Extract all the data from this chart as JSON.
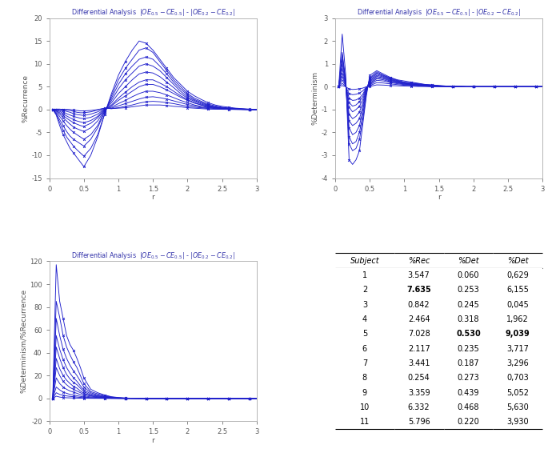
{
  "line_color": "#2020CC",
  "table_data": {
    "subjects": [
      1,
      2,
      3,
      4,
      5,
      6,
      7,
      8,
      9,
      10,
      11
    ],
    "rec": [
      3.547,
      7.635,
      0.842,
      2.464,
      7.028,
      2.117,
      3.441,
      0.254,
      3.359,
      6.332,
      5.796
    ],
    "det": [
      0.06,
      0.253,
      0.245,
      0.318,
      0.53,
      0.235,
      0.187,
      0.273,
      0.439,
      0.468,
      0.22
    ],
    "ratio": [
      0.629,
      6.155,
      0.045,
      1.962,
      9.039,
      3.717,
      3.296,
      0.703,
      5.052,
      5.63,
      3.93
    ],
    "bold_rec_rows": [
      2
    ],
    "bold_det_rows": [
      5
    ],
    "bold_ratio_rows": [
      5
    ]
  },
  "r_values": [
    0.05,
    0.1,
    0.15,
    0.2,
    0.25,
    0.3,
    0.35,
    0.4,
    0.45,
    0.5,
    0.6,
    0.7,
    0.8,
    0.9,
    1.0,
    1.1,
    1.2,
    1.3,
    1.4,
    1.5,
    1.6,
    1.7,
    1.8,
    1.9,
    2.0,
    2.1,
    2.2,
    2.3,
    2.4,
    2.5,
    2.6,
    2.7,
    2.8,
    2.9,
    3.0
  ],
  "rec_curves": [
    [
      0,
      -1.2,
      -3.5,
      -5.5,
      -7.0,
      -8.5,
      -9.5,
      -10.5,
      -11.5,
      -12.5,
      -10.0,
      -6.0,
      -1.0,
      3.5,
      7.5,
      10.5,
      13.0,
      15.0,
      14.5,
      13.0,
      11.0,
      9.0,
      7.0,
      5.5,
      4.0,
      3.0,
      2.2,
      1.5,
      1.0,
      0.7,
      0.5,
      0.3,
      0.2,
      0.1,
      0.0
    ],
    [
      0,
      -1.0,
      -2.8,
      -4.5,
      -6.0,
      -7.0,
      -8.0,
      -8.8,
      -9.5,
      -10.2,
      -8.5,
      -5.5,
      -1.0,
      3.0,
      6.5,
      9.0,
      11.0,
      13.0,
      13.5,
      12.5,
      10.5,
      8.5,
      6.5,
      5.0,
      3.5,
      2.5,
      1.8,
      1.2,
      0.8,
      0.5,
      0.3,
      0.2,
      0.1,
      0.05,
      0.0
    ],
    [
      0,
      -0.8,
      -2.2,
      -3.5,
      -4.8,
      -5.8,
      -6.5,
      -7.0,
      -7.5,
      -8.0,
      -6.5,
      -4.0,
      -0.5,
      2.5,
      5.5,
      7.8,
      9.5,
      11.0,
      11.5,
      11.0,
      9.5,
      7.8,
      6.0,
      4.5,
      3.2,
      2.2,
      1.6,
      1.0,
      0.6,
      0.4,
      0.3,
      0.2,
      0.1,
      0.05,
      0.0
    ],
    [
      0,
      -0.5,
      -1.5,
      -2.5,
      -3.5,
      -4.3,
      -5.0,
      -5.5,
      -6.0,
      -6.5,
      -5.5,
      -3.5,
      -0.3,
      2.0,
      4.5,
      6.5,
      8.0,
      9.5,
      10.0,
      9.5,
      8.5,
      7.0,
      5.5,
      4.0,
      2.8,
      2.0,
      1.4,
      0.9,
      0.6,
      0.4,
      0.3,
      0.2,
      0.1,
      0.05,
      0.0
    ],
    [
      0,
      -0.3,
      -1.0,
      -1.8,
      -2.5,
      -3.2,
      -3.8,
      -4.2,
      -4.5,
      -4.8,
      -4.0,
      -2.5,
      -0.2,
      1.5,
      3.5,
      5.0,
      6.5,
      7.8,
      8.2,
      8.0,
      7.2,
      6.0,
      4.8,
      3.5,
      2.5,
      1.8,
      1.2,
      0.8,
      0.5,
      0.3,
      0.2,
      0.1,
      0.05,
      0.02,
      0.0
    ],
    [
      0,
      -0.2,
      -0.7,
      -1.3,
      -1.9,
      -2.4,
      -2.9,
      -3.2,
      -3.5,
      -3.7,
      -3.0,
      -1.8,
      -0.1,
      1.0,
      2.5,
      3.8,
      5.0,
      6.0,
      6.5,
      6.5,
      5.8,
      5.0,
      4.0,
      3.0,
      2.2,
      1.5,
      1.0,
      0.7,
      0.4,
      0.3,
      0.2,
      0.1,
      0.05,
      0.02,
      0.0
    ],
    [
      0,
      -0.1,
      -0.4,
      -0.9,
      -1.4,
      -1.8,
      -2.2,
      -2.5,
      -2.7,
      -2.9,
      -2.4,
      -1.5,
      0.0,
      0.8,
      2.0,
      3.0,
      4.0,
      5.0,
      5.5,
      5.5,
      5.0,
      4.3,
      3.5,
      2.7,
      2.0,
      1.4,
      1.0,
      0.6,
      0.4,
      0.2,
      0.15,
      0.1,
      0.05,
      0.02,
      0.0
    ],
    [
      0,
      0.0,
      -0.2,
      -0.5,
      -0.9,
      -1.2,
      -1.5,
      -1.7,
      -1.9,
      -2.0,
      -1.7,
      -1.0,
      0.1,
      0.5,
      1.3,
      2.0,
      2.8,
      3.5,
      4.0,
      4.0,
      3.7,
      3.2,
      2.6,
      2.0,
      1.5,
      1.0,
      0.7,
      0.5,
      0.3,
      0.2,
      0.1,
      0.07,
      0.04,
      0.02,
      0.0
    ],
    [
      0,
      0.1,
      0.0,
      -0.2,
      -0.4,
      -0.6,
      -0.9,
      -1.1,
      -1.2,
      -1.3,
      -1.0,
      -0.5,
      0.2,
      0.3,
      0.8,
      1.3,
      1.8,
      2.3,
      2.7,
      2.8,
      2.6,
      2.3,
      1.9,
      1.5,
      1.1,
      0.8,
      0.5,
      0.4,
      0.2,
      0.1,
      0.08,
      0.05,
      0.03,
      0.01,
      0.0
    ],
    [
      0,
      0.1,
      0.1,
      0.0,
      -0.1,
      -0.2,
      -0.4,
      -0.6,
      -0.7,
      -0.7,
      -0.5,
      -0.1,
      0.3,
      0.2,
      0.4,
      0.7,
      1.0,
      1.4,
      1.7,
      1.8,
      1.7,
      1.5,
      1.3,
      1.0,
      0.7,
      0.5,
      0.4,
      0.2,
      0.15,
      0.1,
      0.07,
      0.04,
      0.02,
      0.01,
      0.0
    ],
    [
      0,
      0.05,
      0.05,
      0.05,
      0.02,
      0.0,
      -0.1,
      -0.2,
      -0.3,
      -0.3,
      -0.2,
      0.0,
      0.3,
      0.2,
      0.3,
      0.4,
      0.6,
      0.8,
      1.0,
      1.0,
      1.0,
      0.9,
      0.7,
      0.6,
      0.4,
      0.3,
      0.2,
      0.1,
      0.08,
      0.05,
      0.03,
      0.02,
      0.01,
      0.0,
      0.0
    ]
  ],
  "det_curves": [
    [
      0,
      2.3,
      0.55,
      -3.2,
      -3.4,
      -3.2,
      -2.8,
      -1.6,
      -0.4,
      0.5,
      0.7,
      0.55,
      0.4,
      0.3,
      0.25,
      0.2,
      0.15,
      0.1,
      0.08,
      0.05,
      0.03,
      0.02,
      0.01,
      0.0,
      0.0,
      0.0,
      0.0,
      0.0,
      0.0,
      0.0,
      0.0,
      0.0,
      0.0,
      0.0,
      0.0
    ],
    [
      0,
      1.5,
      0.3,
      -2.5,
      -2.8,
      -2.7,
      -2.3,
      -1.4,
      -0.3,
      0.4,
      0.65,
      0.5,
      0.38,
      0.28,
      0.2,
      0.17,
      0.13,
      0.09,
      0.07,
      0.04,
      0.03,
      0.02,
      0.01,
      0.0,
      0.0,
      0.0,
      0.0,
      0.0,
      0.0,
      0.0,
      0.0,
      0.0,
      0.0,
      0.0,
      0.0
    ],
    [
      0,
      1.4,
      0.25,
      -2.2,
      -2.5,
      -2.4,
      -2.0,
      -1.2,
      -0.2,
      0.35,
      0.6,
      0.48,
      0.35,
      0.26,
      0.18,
      0.15,
      0.12,
      0.08,
      0.06,
      0.04,
      0.02,
      0.01,
      0.01,
      0.0,
      0.0,
      0.0,
      0.0,
      0.0,
      0.0,
      0.0,
      0.0,
      0.0,
      0.0,
      0.0,
      0.0
    ],
    [
      0,
      1.2,
      0.2,
      -1.8,
      -2.1,
      -2.0,
      -1.7,
      -1.0,
      -0.15,
      0.3,
      0.55,
      0.45,
      0.32,
      0.24,
      0.17,
      0.13,
      0.1,
      0.07,
      0.05,
      0.03,
      0.02,
      0.01,
      0.01,
      0.0,
      0.0,
      0.0,
      0.0,
      0.0,
      0.0,
      0.0,
      0.0,
      0.0,
      0.0,
      0.0,
      0.0
    ],
    [
      0,
      1.0,
      0.15,
      -1.5,
      -1.7,
      -1.6,
      -1.4,
      -0.85,
      -0.1,
      0.25,
      0.5,
      0.42,
      0.3,
      0.22,
      0.15,
      0.12,
      0.09,
      0.06,
      0.04,
      0.03,
      0.02,
      0.01,
      0.0,
      0.0,
      0.0,
      0.0,
      0.0,
      0.0,
      0.0,
      0.0,
      0.0,
      0.0,
      0.0,
      0.0,
      0.0
    ],
    [
      0,
      0.8,
      0.1,
      -1.2,
      -1.4,
      -1.3,
      -1.1,
      -0.7,
      -0.08,
      0.2,
      0.45,
      0.38,
      0.27,
      0.2,
      0.14,
      0.11,
      0.08,
      0.05,
      0.04,
      0.02,
      0.01,
      0.01,
      0.0,
      0.0,
      0.0,
      0.0,
      0.0,
      0.0,
      0.0,
      0.0,
      0.0,
      0.0,
      0.0,
      0.0,
      0.0
    ],
    [
      0,
      0.6,
      0.08,
      -0.9,
      -1.1,
      -1.0,
      -0.85,
      -0.55,
      -0.05,
      0.15,
      0.4,
      0.35,
      0.24,
      0.18,
      0.12,
      0.09,
      0.07,
      0.05,
      0.03,
      0.02,
      0.01,
      0.0,
      0.0,
      0.0,
      0.0,
      0.0,
      0.0,
      0.0,
      0.0,
      0.0,
      0.0,
      0.0,
      0.0,
      0.0,
      0.0
    ],
    [
      0,
      0.45,
      0.05,
      -0.7,
      -0.85,
      -0.8,
      -0.65,
      -0.42,
      -0.03,
      0.1,
      0.35,
      0.3,
      0.21,
      0.16,
      0.11,
      0.08,
      0.06,
      0.04,
      0.03,
      0.02,
      0.01,
      0.0,
      0.0,
      0.0,
      0.0,
      0.0,
      0.0,
      0.0,
      0.0,
      0.0,
      0.0,
      0.0,
      0.0,
      0.0,
      0.0
    ],
    [
      0,
      0.3,
      0.03,
      -0.5,
      -0.6,
      -0.58,
      -0.5,
      -0.32,
      -0.02,
      0.07,
      0.28,
      0.25,
      0.18,
      0.13,
      0.09,
      0.07,
      0.05,
      0.03,
      0.02,
      0.01,
      0.01,
      0.0,
      0.0,
      0.0,
      0.0,
      0.0,
      0.0,
      0.0,
      0.0,
      0.0,
      0.0,
      0.0,
      0.0,
      0.0,
      0.0
    ],
    [
      0,
      0.15,
      0.01,
      -0.3,
      -0.35,
      -0.33,
      -0.28,
      -0.18,
      -0.01,
      0.04,
      0.18,
      0.16,
      0.12,
      0.09,
      0.06,
      0.05,
      0.03,
      0.02,
      0.01,
      0.01,
      0.0,
      0.0,
      0.0,
      0.0,
      0.0,
      0.0,
      0.0,
      0.0,
      0.0,
      0.0,
      0.0,
      0.0,
      0.0,
      0.0,
      0.0
    ],
    [
      0,
      0.05,
      0.0,
      -0.1,
      -0.12,
      -0.11,
      -0.09,
      -0.06,
      0.0,
      0.01,
      0.08,
      0.07,
      0.05,
      0.04,
      0.03,
      0.02,
      0.01,
      0.01,
      0.0,
      0.0,
      0.0,
      0.0,
      0.0,
      0.0,
      0.0,
      0.0,
      0.0,
      0.0,
      0.0,
      0.0,
      0.0,
      0.0,
      0.0,
      0.0,
      0.0
    ]
  ],
  "ratio_curves": [
    [
      0,
      117,
      85,
      70,
      55,
      47,
      42,
      35,
      27,
      18,
      8,
      5,
      3,
      1.5,
      0.8,
      0.4,
      0.2,
      0.1,
      0.05,
      0.02,
      0.0,
      0.0,
      0.0,
      0.0,
      0.0,
      0.0,
      0.0,
      0.0,
      0.0,
      0.0,
      0.0,
      0.0,
      0.0,
      0.0,
      0.0
    ],
    [
      0,
      85,
      71,
      55,
      45,
      38,
      32,
      27,
      20,
      13,
      6,
      4,
      2.5,
      1.2,
      0.6,
      0.3,
      0.15,
      0.08,
      0.04,
      0.02,
      0.0,
      0.0,
      0.0,
      0.0,
      0.0,
      0.0,
      0.0,
      0.0,
      0.0,
      0.0,
      0.0,
      0.0,
      0.0,
      0.0,
      0.0
    ],
    [
      0,
      70,
      55,
      43,
      35,
      29,
      24,
      20,
      15,
      10,
      5,
      3,
      2,
      1,
      0.5,
      0.25,
      0.12,
      0.06,
      0.03,
      0.01,
      0.0,
      0.0,
      0.0,
      0.0,
      0.0,
      0.0,
      0.0,
      0.0,
      0.0,
      0.0,
      0.0,
      0.0,
      0.0,
      0.0,
      0.0
    ],
    [
      0,
      55,
      43,
      34,
      27,
      22,
      18,
      15,
      11,
      7.5,
      4,
      2.5,
      1.5,
      0.8,
      0.4,
      0.2,
      0.1,
      0.05,
      0.02,
      0.01,
      0.0,
      0.0,
      0.0,
      0.0,
      0.0,
      0.0,
      0.0,
      0.0,
      0.0,
      0.0,
      0.0,
      0.0,
      0.0,
      0.0,
      0.0
    ],
    [
      0,
      45,
      35,
      27,
      21,
      17,
      14,
      12,
      9,
      6,
      3,
      2,
      1.2,
      0.6,
      0.3,
      0.15,
      0.07,
      0.04,
      0.02,
      0.01,
      0.0,
      0.0,
      0.0,
      0.0,
      0.0,
      0.0,
      0.0,
      0.0,
      0.0,
      0.0,
      0.0,
      0.0,
      0.0,
      0.0,
      0.0
    ],
    [
      0,
      35,
      26,
      20,
      16,
      13,
      10.5,
      9,
      6.5,
      4.5,
      2.5,
      1.5,
      1,
      0.5,
      0.25,
      0.12,
      0.06,
      0.03,
      0.01,
      0.0,
      0.0,
      0.0,
      0.0,
      0.0,
      0.0,
      0.0,
      0.0,
      0.0,
      0.0,
      0.0,
      0.0,
      0.0,
      0.0,
      0.0,
      0.0
    ],
    [
      0,
      27,
      20,
      15,
      12,
      9.5,
      8,
      6.5,
      5,
      3.5,
      2,
      1.2,
      0.7,
      0.4,
      0.2,
      0.1,
      0.05,
      0.02,
      0.01,
      0.0,
      0.0,
      0.0,
      0.0,
      0.0,
      0.0,
      0.0,
      0.0,
      0.0,
      0.0,
      0.0,
      0.0,
      0.0,
      0.0,
      0.0,
      0.0
    ],
    [
      0,
      18,
      13,
      10,
      8,
      6.5,
      5.5,
      4.5,
      3.3,
      2.3,
      1.3,
      0.8,
      0.5,
      0.25,
      0.12,
      0.06,
      0.03,
      0.01,
      0.0,
      0.0,
      0.0,
      0.0,
      0.0,
      0.0,
      0.0,
      0.0,
      0.0,
      0.0,
      0.0,
      0.0,
      0.0,
      0.0,
      0.0,
      0.0,
      0.0
    ],
    [
      0,
      10,
      7.5,
      5.5,
      4.5,
      3.5,
      3,
      2.4,
      1.8,
      1.3,
      0.7,
      0.5,
      0.3,
      0.15,
      0.07,
      0.03,
      0.01,
      0.0,
      0.0,
      0.0,
      0.0,
      0.0,
      0.0,
      0.0,
      0.0,
      0.0,
      0.0,
      0.0,
      0.0,
      0.0,
      0.0,
      0.0,
      0.0,
      0.0,
      0.0
    ],
    [
      0,
      5,
      3.5,
      2.8,
      2.2,
      1.8,
      1.5,
      1.2,
      0.9,
      0.6,
      0.35,
      0.2,
      0.12,
      0.06,
      0.03,
      0.01,
      0.0,
      0.0,
      0.0,
      0.0,
      0.0,
      0.0,
      0.0,
      0.0,
      0.0,
      0.0,
      0.0,
      0.0,
      0.0,
      0.0,
      0.0,
      0.0,
      0.0,
      0.0,
      0.0
    ],
    [
      0,
      2,
      1.2,
      0.8,
      0.6,
      0.5,
      0.4,
      0.3,
      0.22,
      0.15,
      0.08,
      0.05,
      0.03,
      0.01,
      0.0,
      0.0,
      0.0,
      0.0,
      0.0,
      0.0,
      0.0,
      0.0,
      0.0,
      0.0,
      0.0,
      0.0,
      0.0,
      0.0,
      0.0,
      0.0,
      0.0,
      0.0,
      0.0,
      0.0,
      0.0
    ]
  ],
  "rec_ylim": [
    -15,
    20
  ],
  "det_ylim": [
    -4,
    3
  ],
  "ratio_ylim": [
    -20,
    120
  ],
  "xlim": [
    0,
    3
  ],
  "rec_yticks": [
    -15,
    -10,
    -5,
    0,
    5,
    10,
    15,
    20
  ],
  "det_yticks": [
    -4,
    -3,
    -2,
    -1,
    0,
    1,
    2,
    3
  ],
  "ratio_yticks": [
    -20,
    0,
    20,
    40,
    60,
    80,
    100,
    120
  ],
  "xticks": [
    0,
    0.5,
    1,
    1.5,
    2,
    2.5,
    3
  ]
}
